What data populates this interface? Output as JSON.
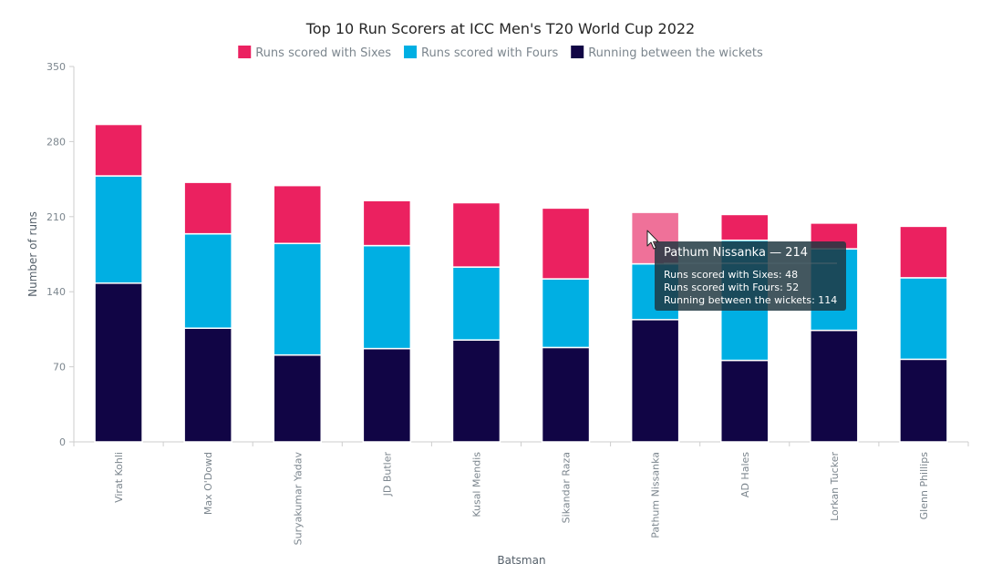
{
  "chart_data": {
    "type": "bar",
    "stacked": true,
    "title": "Top 10 Run Scorers at ICC Men's T20 World Cup 2022",
    "xlabel": "Batsman",
    "ylabel": "Number of runs",
    "ylim": [
      0,
      350
    ],
    "yticks": [
      "0",
      "70",
      "140",
      "210",
      "280",
      "350"
    ],
    "legend_position": "top",
    "categories": [
      "Virat Kohli",
      "Max O'Dowd",
      "Suryakumar Yadav",
      "JD Butler",
      "Kusal Mendis",
      "Sikandar Raza",
      "Pathum Nissanka",
      "AD Hales",
      "Lorkan Tucker",
      "Glenn Phillips"
    ],
    "series": [
      {
        "name": "Running between the wickets",
        "color": "#110545",
        "values": [
          148,
          106,
          81,
          87,
          95,
          88,
          114,
          76,
          104,
          77
        ]
      },
      {
        "name": "Runs scored with Fours",
        "color": "#00afe3",
        "values": [
          100,
          88,
          104,
          96,
          68,
          64,
          52,
          112,
          76,
          76
        ]
      },
      {
        "name": "Runs scored with Sixes",
        "color": "#eb2160",
        "values": [
          48,
          48,
          54,
          42,
          60,
          66,
          48,
          24,
          24,
          48
        ]
      }
    ],
    "legend_order": [
      "Runs scored with Sixes",
      "Runs scored with Fours",
      "Running between the wickets"
    ],
    "highlighted": {
      "category": "Pathum Nissanka",
      "series": "Runs scored with Sixes",
      "color": "#ef7199"
    },
    "tooltip": {
      "title": "Pathum Nissanka — 214",
      "lines": [
        "Runs scored with Sixes: 48",
        "Runs scored with Fours: 52",
        "Running between the wickets: 114"
      ]
    }
  }
}
